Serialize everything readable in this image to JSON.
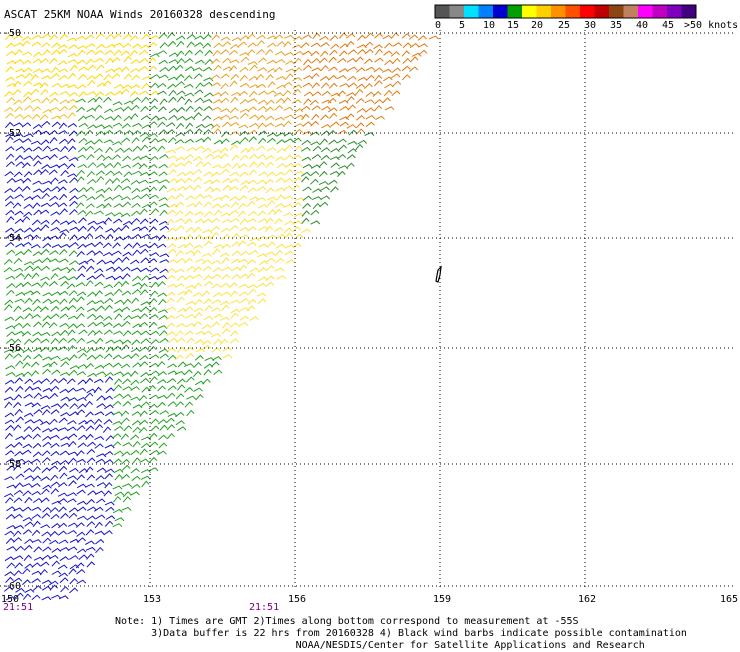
{
  "title": "ASCAT 25KM NOAA Winds 20160328 descending",
  "legend": {
    "swatches": [
      "#555555",
      "#888888",
      "#00e0ff",
      "#0080ff",
      "#0000d0",
      "#00a000",
      "#ffff00",
      "#ffd000",
      "#ff9000",
      "#ff5000",
      "#ff0000",
      "#c00000",
      "#8b4513",
      "#c08060",
      "#ff00ff",
      "#c000c0",
      "#8000c0",
      "#400080"
    ],
    "labels": [
      "0",
      "5",
      "10",
      "15",
      "20",
      "25",
      "30",
      "35",
      "40",
      "45",
      ">50 knots"
    ]
  },
  "map": {
    "lat_labels": [
      "-50",
      "-52",
      "-54",
      "-56",
      "-58",
      "-60"
    ],
    "lon_labels": [
      "150",
      "153",
      "156",
      "159",
      "162",
      "165"
    ],
    "time_labels": [
      "21:51",
      "21:51"
    ]
  },
  "notes": [
    "Note: 1) Times are GMT 2)Times along bottom correspond to measurement at -55S",
    "      3)Data buffer is 22 hrs from 20160328 4) Black wind barbs indicate possible contamination",
    "                              NOAA/NESDIS/Center for Satellite Applications and Research"
  ]
}
